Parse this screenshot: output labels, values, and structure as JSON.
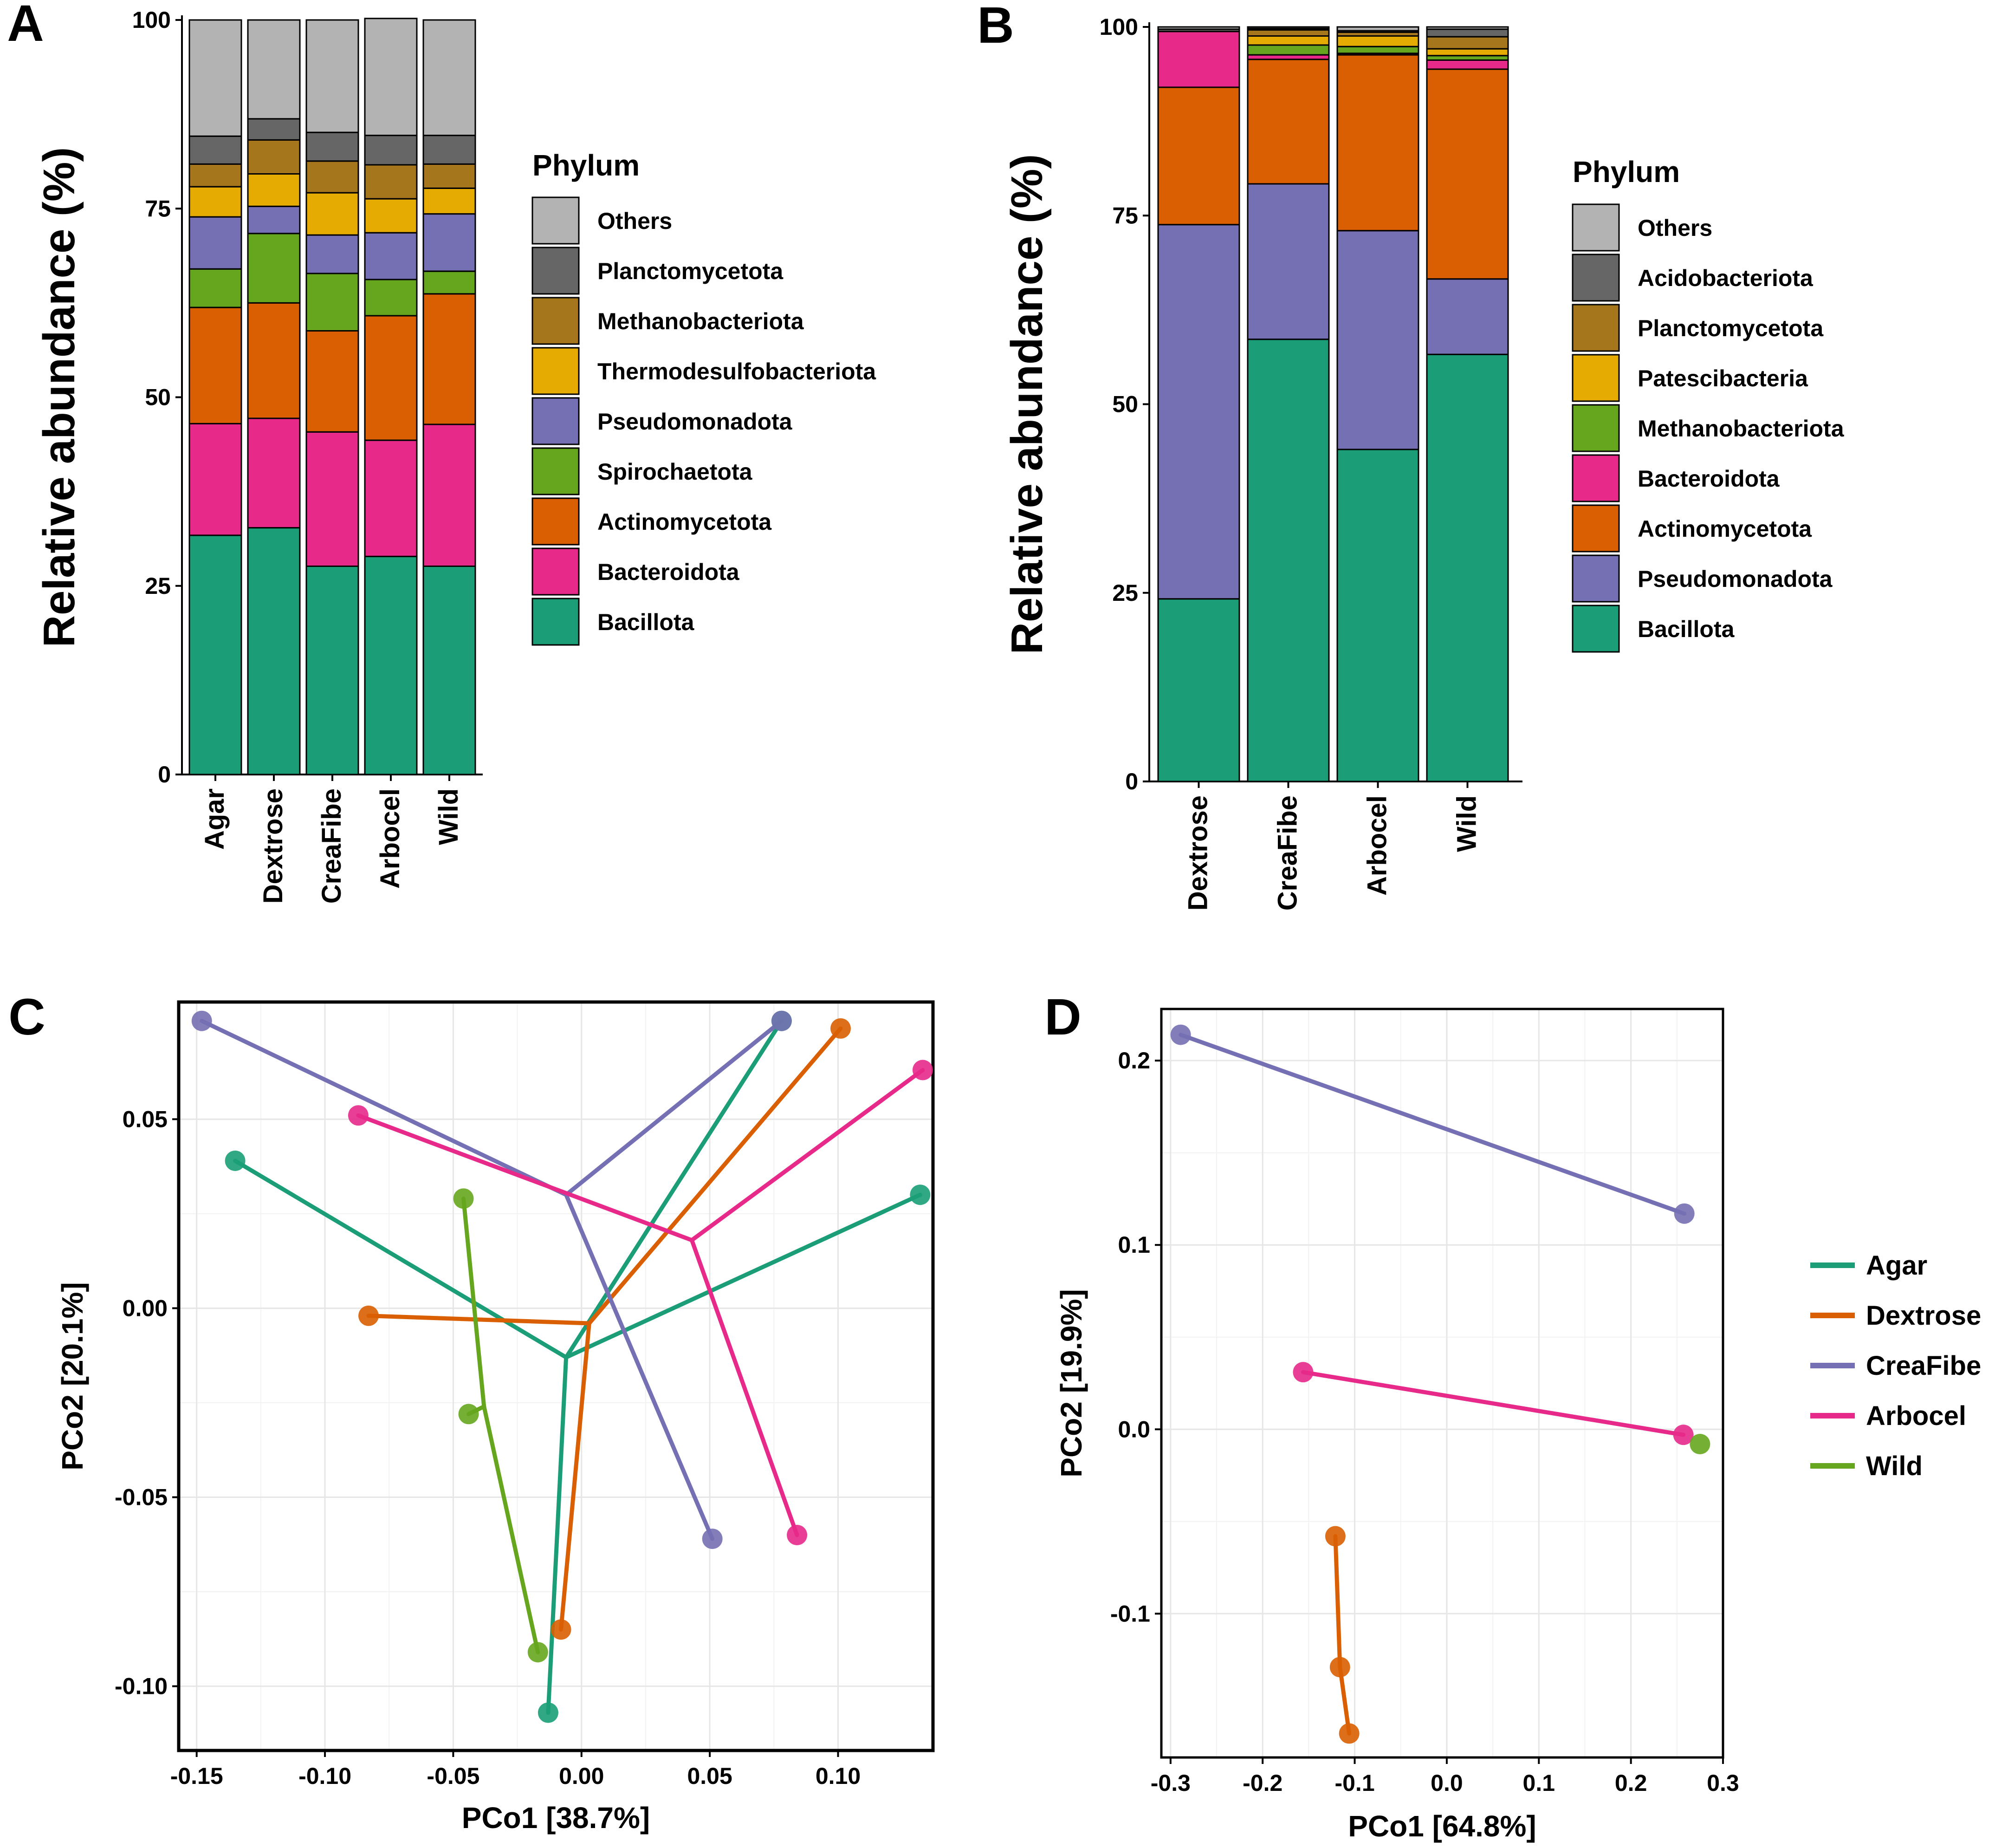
{
  "panels": {
    "A": {
      "label": "A"
    },
    "B": {
      "label": "B"
    },
    "C": {
      "label": "C"
    },
    "D": {
      "label": "D"
    }
  },
  "chart_data": [
    {
      "panel": "A",
      "type": "bar",
      "stacked": true,
      "ylabel": "Relative abundance (%)",
      "xlabel": "",
      "ylim": [
        0,
        100
      ],
      "yticks": [
        "0",
        "25",
        "50",
        "75",
        "100"
      ],
      "categories": [
        "Agar",
        "Dextrose",
        "CreaFibe",
        "Arbocel",
        "Wild"
      ],
      "legend_title": "Phylum",
      "legend": [
        "Others",
        "Planctomycetota",
        "Methanobacteriota",
        "Thermodesulfobacteriota",
        "Pseudomonadota",
        "Spirochaetota",
        "Actinomycetota",
        "Bacteroidota",
        "Bacillota"
      ],
      "series": [
        {
          "name": "Bacillota",
          "color": "#1b9e77",
          "values": [
            31.7,
            32.7,
            27.6,
            28.9,
            27.6
          ]
        },
        {
          "name": "Bacteroidota",
          "color": "#e7298a",
          "values": [
            14.8,
            14.5,
            17.8,
            15.4,
            18.8
          ]
        },
        {
          "name": "Actinomycetota",
          "color": "#d95f02",
          "values": [
            15.4,
            15.3,
            13.4,
            16.5,
            17.3
          ]
        },
        {
          "name": "Spirochaetota",
          "color": "#66a61e",
          "values": [
            5.1,
            9.2,
            7.6,
            4.8,
            3.0
          ]
        },
        {
          "name": "Pseudomonadota",
          "color": "#7570b3",
          "values": [
            6.9,
            3.6,
            5.1,
            6.2,
            7.6
          ]
        },
        {
          "name": "Thermodesulfobacteriota",
          "color": "#e6ab02",
          "values": [
            4.0,
            4.3,
            5.6,
            4.5,
            3.4
          ]
        },
        {
          "name": "Methanobacteriota",
          "color": "#a6761d",
          "values": [
            3.0,
            4.5,
            4.2,
            4.5,
            3.2
          ]
        },
        {
          "name": "Planctomycetota",
          "color": "#666666",
          "values": [
            3.7,
            2.8,
            3.8,
            3.9,
            3.8
          ]
        },
        {
          "name": "Others",
          "color": "#b3b3b3",
          "values": [
            15.4,
            13.1,
            14.9,
            15.5,
            15.3
          ]
        }
      ]
    },
    {
      "panel": "B",
      "type": "bar",
      "stacked": true,
      "ylabel": "Relative abundance (%)",
      "xlabel": "",
      "ylim": [
        0,
        100
      ],
      "yticks": [
        "0",
        "25",
        "50",
        "75",
        "100"
      ],
      "categories": [
        "Dextrose",
        "CreaFibe",
        "Arbocel",
        "Wild"
      ],
      "legend_title": "Phylum",
      "legend": [
        "Others",
        "Acidobacteriota",
        "Planctomycetota",
        "Patescibacteria",
        "Methanobacteriota",
        "Bacteroidota",
        "Actinomycetota",
        "Pseudomonadota",
        "Bacillota"
      ],
      "series": [
        {
          "name": "Bacillota",
          "color": "#1b9e77",
          "values": [
            24.2,
            58.6,
            44.0,
            56.6
          ]
        },
        {
          "name": "Pseudomonadota",
          "color": "#7570b3",
          "values": [
            49.6,
            20.6,
            29.0,
            10.0
          ]
        },
        {
          "name": "Actinomycetota",
          "color": "#d95f02",
          "values": [
            18.2,
            16.5,
            23.3,
            27.8
          ]
        },
        {
          "name": "Bacteroidota",
          "color": "#e7298a",
          "values": [
            7.4,
            0.6,
            0.2,
            1.2
          ]
        },
        {
          "name": "Methanobacteriota",
          "color": "#66a61e",
          "values": [
            0.0,
            1.3,
            0.9,
            0.6
          ]
        },
        {
          "name": "Patescibacteria",
          "color": "#e6ab02",
          "values": [
            0.0,
            1.2,
            1.4,
            0.9
          ]
        },
        {
          "name": "Planctomycetota",
          "color": "#a6761d",
          "values": [
            0.0,
            0.8,
            0.5,
            1.6
          ]
        },
        {
          "name": "Acidobacteriota",
          "color": "#666666",
          "values": [
            0.3,
            0.2,
            0.2,
            1.0
          ]
        },
        {
          "name": "Others",
          "color": "#b3b3b3",
          "values": [
            0.3,
            0.2,
            0.5,
            0.3
          ]
        }
      ]
    },
    {
      "panel": "C",
      "type": "scatter",
      "xlabel": "PCo1 [38.7%]",
      "ylabel": "PCo2 [20.1%]",
      "xlim": [
        -0.157,
        0.137
      ],
      "ylim": [
        -0.117,
        0.081
      ],
      "xticks": [
        -0.15,
        -0.1,
        -0.05,
        0.0,
        0.05,
        0.1
      ],
      "xtick_labels": [
        "-0.15",
        "-0.10",
        "-0.05",
        "0.00",
        "0.05",
        "0.10"
      ],
      "yticks": [
        -0.1,
        -0.05,
        0.0,
        0.05
      ],
      "ytick_labels": [
        "-0.10",
        "-0.05",
        "0.00",
        "0.05"
      ],
      "groups": [
        {
          "name": "Agar",
          "color": "#1b9e77",
          "centroid": [
            -0.006,
            -0.013
          ],
          "points": [
            [
              -0.135,
              0.039
            ],
            [
              0.078,
              0.076
            ],
            [
              0.132,
              0.03
            ],
            [
              -0.013,
              -0.107
            ]
          ]
        },
        {
          "name": "Dextrose",
          "color": "#d95f02",
          "centroid": [
            0.003,
            -0.004
          ],
          "points": [
            [
              -0.083,
              -0.002
            ],
            [
              0.101,
              0.074
            ],
            [
              -0.008,
              -0.085
            ]
          ]
        },
        {
          "name": "CreaFibe",
          "color": "#7570b3",
          "centroid": [
            -0.006,
            0.03
          ],
          "points": [
            [
              -0.148,
              0.076
            ],
            [
              0.078,
              0.076
            ],
            [
              0.051,
              -0.061
            ]
          ]
        },
        {
          "name": "Arbocel",
          "color": "#e7298a",
          "centroid": [
            0.043,
            0.018
          ],
          "points": [
            [
              -0.087,
              0.051
            ],
            [
              0.133,
              0.063
            ],
            [
              0.084,
              -0.06
            ]
          ]
        },
        {
          "name": "Wild",
          "color": "#66a61e",
          "centroid": [
            -0.038,
            -0.026
          ],
          "points": [
            [
              -0.046,
              0.029
            ],
            [
              -0.044,
              -0.028
            ],
            [
              -0.017,
              -0.091
            ]
          ]
        }
      ]
    },
    {
      "panel": "D",
      "type": "scatter",
      "xlabel": "PCo1 [64.8%]",
      "ylabel": "PCo2 [19.9%]",
      "xlim": [
        -0.31,
        0.3
      ],
      "ylim": [
        -0.178,
        0.228
      ],
      "xticks": [
        -0.3,
        -0.2,
        -0.1,
        0.0,
        0.1,
        0.2,
        0.3
      ],
      "xtick_labels": [
        "-0.3",
        "-0.2",
        "-0.1",
        "0.0",
        "0.1",
        "0.2",
        "0.3"
      ],
      "yticks": [
        -0.1,
        0.0,
        0.1,
        0.2
      ],
      "ytick_labels": [
        "-0.1",
        "0.0",
        "0.1",
        "0.2"
      ],
      "groups": [
        {
          "name": "Agar",
          "color": "#1b9e77",
          "centroid": null,
          "points": []
        },
        {
          "name": "Dextrose",
          "color": "#d95f02",
          "centroid": null,
          "points": [
            [
              -0.121,
              -0.058
            ],
            [
              -0.116,
              -0.129
            ],
            [
              -0.106,
              -0.165
            ]
          ]
        },
        {
          "name": "CreaFibe",
          "color": "#7570b3",
          "centroid": null,
          "points": [
            [
              -0.289,
              0.214
            ],
            [
              0.258,
              0.117
            ]
          ]
        },
        {
          "name": "Arbocel",
          "color": "#e7298a",
          "centroid": null,
          "points": [
            [
              -0.156,
              0.031
            ],
            [
              0.257,
              -0.003
            ]
          ]
        },
        {
          "name": "Wild",
          "color": "#66a61e",
          "centroid": null,
          "points": [
            [
              0.275,
              -0.008
            ]
          ]
        }
      ],
      "legend": [
        "Agar",
        "Dextrose",
        "CreaFibe",
        "Arbocel",
        "Wild"
      ]
    }
  ]
}
